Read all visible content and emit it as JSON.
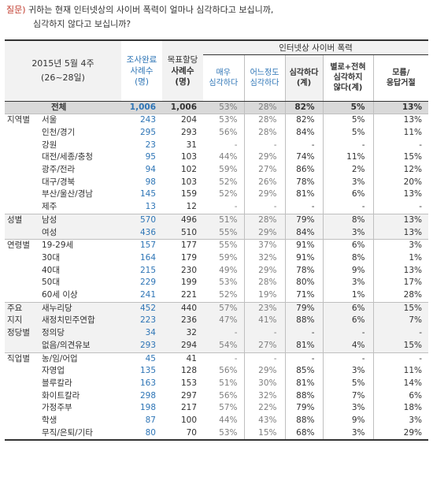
{
  "question": {
    "label": "질문)",
    "line1": "귀하는 현재 인터넷상의 사이버 폭력이 얼마나 심각하다고 보십니까,",
    "line2": "심각하지 않다고 보십니까?"
  },
  "header": {
    "date_line1": "2015년 5월 4주",
    "date_line2": "(26~28일)",
    "survey_complete_l1": "조사완료",
    "survey_complete_l2": "사례수",
    "survey_complete_l3": "(명)",
    "target_l1": "목표할당",
    "target_l2": "사례수",
    "target_l3": "(명)",
    "group_title": "인터넷상 사이버 폭력",
    "col_very_l1": "매우",
    "col_very_l2": "심각하다",
    "col_some_l1": "어느정도",
    "col_some_l2": "심각하다",
    "col_serious_l1": "심각하다",
    "col_serious_l2": "(계)",
    "col_not_l1": "별로+전혀",
    "col_not_l2": "심각하지",
    "col_not_l3": "않다(계)",
    "col_dk_l1": "모름/",
    "col_dk_l2": "응답거절"
  },
  "rows": [
    {
      "cat": "",
      "sub": "전체",
      "n1": "1,006",
      "n2": "1,006",
      "very": "53%",
      "some": "28%",
      "serious": "82%",
      "not": "5%",
      "dk": "13%"
    },
    {
      "cat": "지역별",
      "sub": "서울",
      "n1": "243",
      "n2": "204",
      "very": "53%",
      "some": "28%",
      "serious": "82%",
      "not": "5%",
      "dk": "13%"
    },
    {
      "cat": "",
      "sub": "인천/경기",
      "n1": "295",
      "n2": "293",
      "very": "56%",
      "some": "28%",
      "serious": "84%",
      "not": "5%",
      "dk": "11%"
    },
    {
      "cat": "",
      "sub": "강원",
      "n1": "23",
      "n2": "31",
      "very": "-",
      "some": "-",
      "serious": "-",
      "not": "-",
      "dk": "-"
    },
    {
      "cat": "",
      "sub": "대전/세종/충청",
      "n1": "95",
      "n2": "103",
      "very": "44%",
      "some": "29%",
      "serious": "74%",
      "not": "11%",
      "dk": "15%"
    },
    {
      "cat": "",
      "sub": "광주/전라",
      "n1": "94",
      "n2": "102",
      "very": "59%",
      "some": "27%",
      "serious": "86%",
      "not": "2%",
      "dk": "12%"
    },
    {
      "cat": "",
      "sub": "대구/경북",
      "n1": "98",
      "n2": "103",
      "very": "52%",
      "some": "26%",
      "serious": "78%",
      "not": "3%",
      "dk": "20%"
    },
    {
      "cat": "",
      "sub": "부산/울산/경남",
      "n1": "145",
      "n2": "159",
      "very": "52%",
      "some": "29%",
      "serious": "81%",
      "not": "6%",
      "dk": "13%"
    },
    {
      "cat": "",
      "sub": "제주",
      "n1": "13",
      "n2": "12",
      "very": "-",
      "some": "-",
      "serious": "-",
      "not": "-",
      "dk": "-"
    },
    {
      "cat": "성별",
      "sub": "남성",
      "n1": "570",
      "n2": "496",
      "very": "51%",
      "some": "28%",
      "serious": "79%",
      "not": "8%",
      "dk": "13%"
    },
    {
      "cat": "",
      "sub": "여성",
      "n1": "436",
      "n2": "510",
      "very": "55%",
      "some": "29%",
      "serious": "84%",
      "not": "3%",
      "dk": "13%"
    },
    {
      "cat": "연령별",
      "sub": "19-29세",
      "n1": "157",
      "n2": "177",
      "very": "55%",
      "some": "37%",
      "serious": "91%",
      "not": "6%",
      "dk": "3%"
    },
    {
      "cat": "",
      "sub": "30대",
      "n1": "164",
      "n2": "179",
      "very": "59%",
      "some": "32%",
      "serious": "91%",
      "not": "8%",
      "dk": "1%"
    },
    {
      "cat": "",
      "sub": "40대",
      "n1": "215",
      "n2": "230",
      "very": "49%",
      "some": "29%",
      "serious": "78%",
      "not": "9%",
      "dk": "13%"
    },
    {
      "cat": "",
      "sub": "50대",
      "n1": "229",
      "n2": "199",
      "very": "53%",
      "some": "28%",
      "serious": "80%",
      "not": "3%",
      "dk": "17%"
    },
    {
      "cat": "",
      "sub": "60세 이상",
      "n1": "241",
      "n2": "221",
      "very": "52%",
      "some": "19%",
      "serious": "71%",
      "not": "1%",
      "dk": "28%"
    },
    {
      "cat": "주요",
      "sub": "새누리당",
      "n1": "452",
      "n2": "440",
      "very": "57%",
      "some": "23%",
      "serious": "79%",
      "not": "6%",
      "dk": "15%"
    },
    {
      "cat": "지지",
      "sub": "새정치민주연합",
      "n1": "223",
      "n2": "236",
      "very": "47%",
      "some": "41%",
      "serious": "88%",
      "not": "6%",
      "dk": "7%"
    },
    {
      "cat": "정당별",
      "sub": "정의당",
      "n1": "34",
      "n2": "32",
      "very": "-",
      "some": "-",
      "serious": "-",
      "not": "-",
      "dk": "-"
    },
    {
      "cat": "",
      "sub": "없음/의견유보",
      "n1": "293",
      "n2": "294",
      "very": "54%",
      "some": "27%",
      "serious": "81%",
      "not": "4%",
      "dk": "15%"
    },
    {
      "cat": "직업별",
      "sub": "농/임/어업",
      "n1": "45",
      "n2": "41",
      "very": "-",
      "some": "-",
      "serious": "-",
      "not": "-",
      "dk": "-"
    },
    {
      "cat": "",
      "sub": "자영업",
      "n1": "135",
      "n2": "128",
      "very": "56%",
      "some": "29%",
      "serious": "85%",
      "not": "3%",
      "dk": "11%"
    },
    {
      "cat": "",
      "sub": "블루칼라",
      "n1": "163",
      "n2": "153",
      "very": "51%",
      "some": "30%",
      "serious": "81%",
      "not": "5%",
      "dk": "14%"
    },
    {
      "cat": "",
      "sub": "화이트칼라",
      "n1": "298",
      "n2": "297",
      "very": "56%",
      "some": "32%",
      "serious": "88%",
      "not": "7%",
      "dk": "6%"
    },
    {
      "cat": "",
      "sub": "가정주부",
      "n1": "198",
      "n2": "217",
      "very": "57%",
      "some": "22%",
      "serious": "79%",
      "not": "3%",
      "dk": "18%"
    },
    {
      "cat": "",
      "sub": "학생",
      "n1": "87",
      "n2": "100",
      "very": "44%",
      "some": "43%",
      "serious": "88%",
      "not": "9%",
      "dk": "3%"
    },
    {
      "cat": "",
      "sub": "무직/은퇴/기타",
      "n1": "80",
      "n2": "70",
      "very": "53%",
      "some": "15%",
      "serious": "68%",
      "not": "3%",
      "dk": "29%"
    }
  ]
}
